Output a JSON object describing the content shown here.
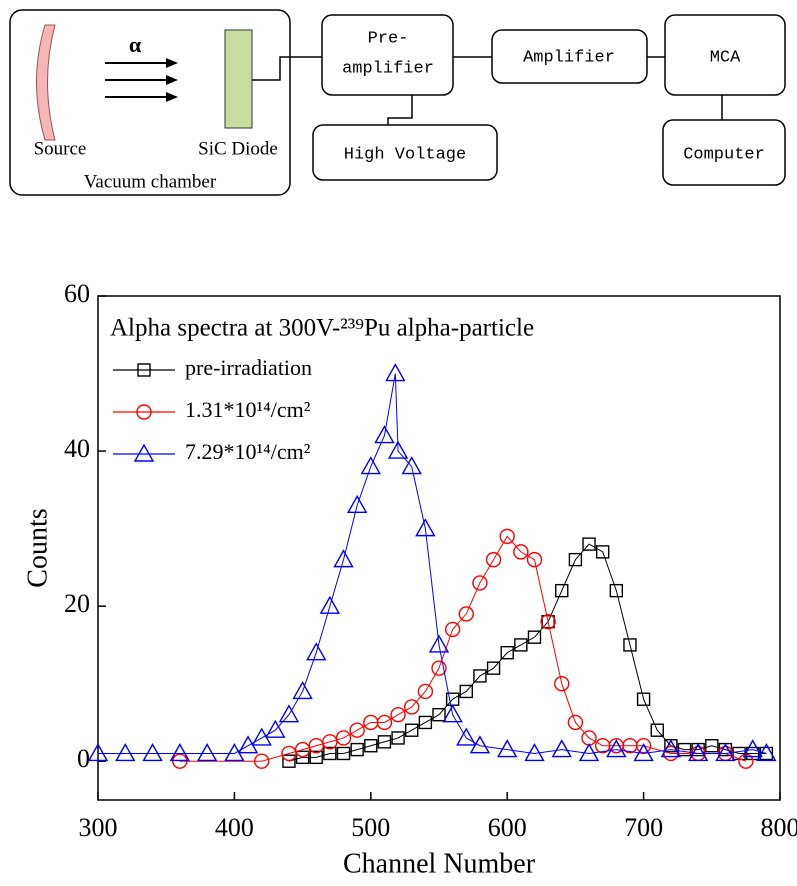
{
  "diagram": {
    "chamber": "Vacuum chamber",
    "source": "Source",
    "particle": "α",
    "detector": "SiC Diode",
    "preamp_line1": "Pre-",
    "preamp_line2": "amplifier",
    "amplifier": "Amplifier",
    "mca": "MCA",
    "high_voltage": "High Voltage",
    "computer": "Computer"
  },
  "chart_data": {
    "type": "line",
    "title": "Alpha spectra at 300V-²³⁹Pu alpha-particle",
    "x_label": "Channel Number",
    "y_label": "Counts",
    "xlim": [
      300,
      800
    ],
    "ylim": [
      -5,
      60
    ],
    "xticks": [
      300,
      400,
      500,
      600,
      700,
      800
    ],
    "yticks": [
      0,
      20,
      40,
      60
    ],
    "legend": "upper-left",
    "series": [
      {
        "name": "pre-irradiation",
        "color": "#000000",
        "marker": "square",
        "x": [
          440,
          450,
          460,
          470,
          480,
          490,
          500,
          510,
          520,
          530,
          540,
          550,
          560,
          570,
          580,
          590,
          600,
          610,
          620,
          630,
          640,
          650,
          660,
          670,
          680,
          690,
          700,
          710,
          720,
          730,
          740,
          750,
          760,
          770,
          780,
          790
        ],
        "values": [
          0,
          0.5,
          0.5,
          1,
          1,
          1.5,
          2,
          2.5,
          3,
          4,
          5,
          6,
          8,
          9,
          11,
          12,
          14,
          15,
          16,
          18,
          22,
          26,
          28,
          27,
          22,
          15,
          8,
          4,
          2,
          1.5,
          1.5,
          2,
          1.5,
          1,
          1,
          1
        ]
      },
      {
        "name": "1.31*10¹⁴/cm²",
        "color": "#ff0000",
        "marker": "circle",
        "x": [
          360,
          420,
          440,
          450,
          460,
          470,
          480,
          490,
          500,
          510,
          520,
          530,
          540,
          550,
          560,
          570,
          580,
          590,
          600,
          610,
          620,
          630,
          640,
          650,
          660,
          670,
          680,
          690,
          700,
          720,
          740,
          760,
          775
        ],
        "values": [
          0,
          0,
          1,
          1.5,
          2,
          2.5,
          3,
          4,
          5,
          5,
          6,
          7,
          9,
          12,
          17,
          19,
          23,
          26,
          29,
          27,
          26,
          18,
          10,
          5,
          3,
          2,
          2,
          2,
          2,
          1,
          1,
          1,
          0
        ]
      },
      {
        "name": "7.29*10¹⁴/cm²",
        "color": "#0000ff",
        "marker": "triangle",
        "x": [
          300,
          320,
          340,
          360,
          380,
          400,
          410,
          420,
          430,
          440,
          450,
          460,
          470,
          480,
          490,
          500,
          510,
          518,
          520,
          530,
          540,
          550,
          560,
          570,
          580,
          600,
          620,
          640,
          660,
          680,
          700,
          720,
          740,
          760,
          780,
          790
        ],
        "values": [
          1,
          1,
          1,
          1,
          1,
          1,
          2,
          3,
          4,
          6,
          9,
          14,
          20,
          26,
          33,
          38,
          42,
          50,
          40,
          38,
          30,
          15,
          6,
          3,
          2,
          1.5,
          1,
          1.5,
          1,
          1.5,
          1,
          1.5,
          1,
          1,
          1.5,
          1
        ]
      }
    ]
  }
}
